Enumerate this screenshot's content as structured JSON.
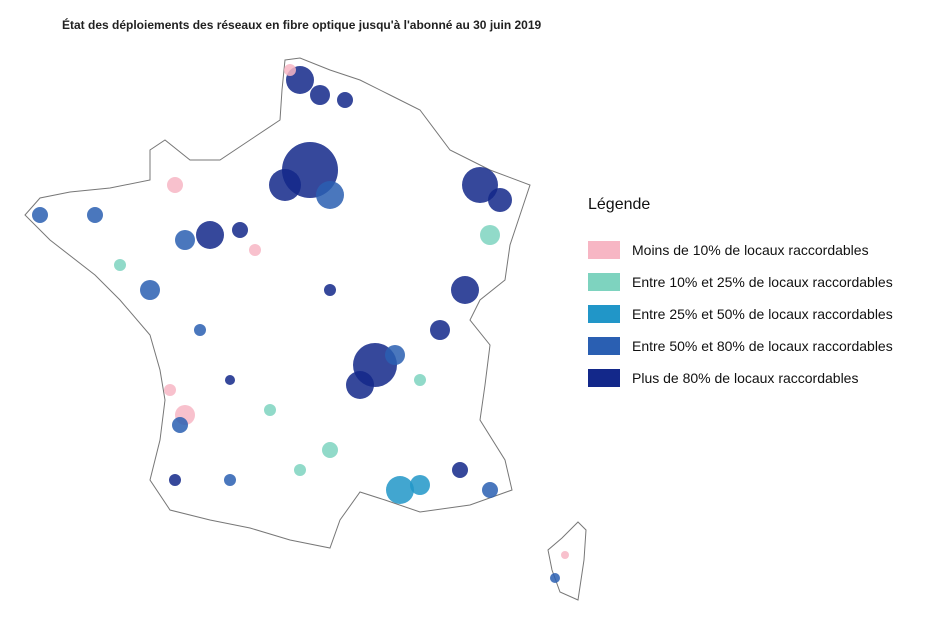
{
  "title": "État des déploiements des réseaux en fibre optique jusqu'à l'abonné au 30 juin 2019",
  "legend": {
    "title": "Légende",
    "items": [
      {
        "label": "Moins de 10% de locaux raccordables",
        "color": "#f7b6c4"
      },
      {
        "label": "Entre 10% et 25% de locaux raccordables",
        "color": "#7ed3bf"
      },
      {
        "label": "Entre 25% et 50% de locaux raccordables",
        "color": "#2196c8"
      },
      {
        "label": "Entre 50% et 80% de locaux raccordables",
        "color": "#2a5fb2"
      },
      {
        "label": "Plus de 80% de locaux raccordables",
        "color": "#13288a"
      }
    ]
  }
}
